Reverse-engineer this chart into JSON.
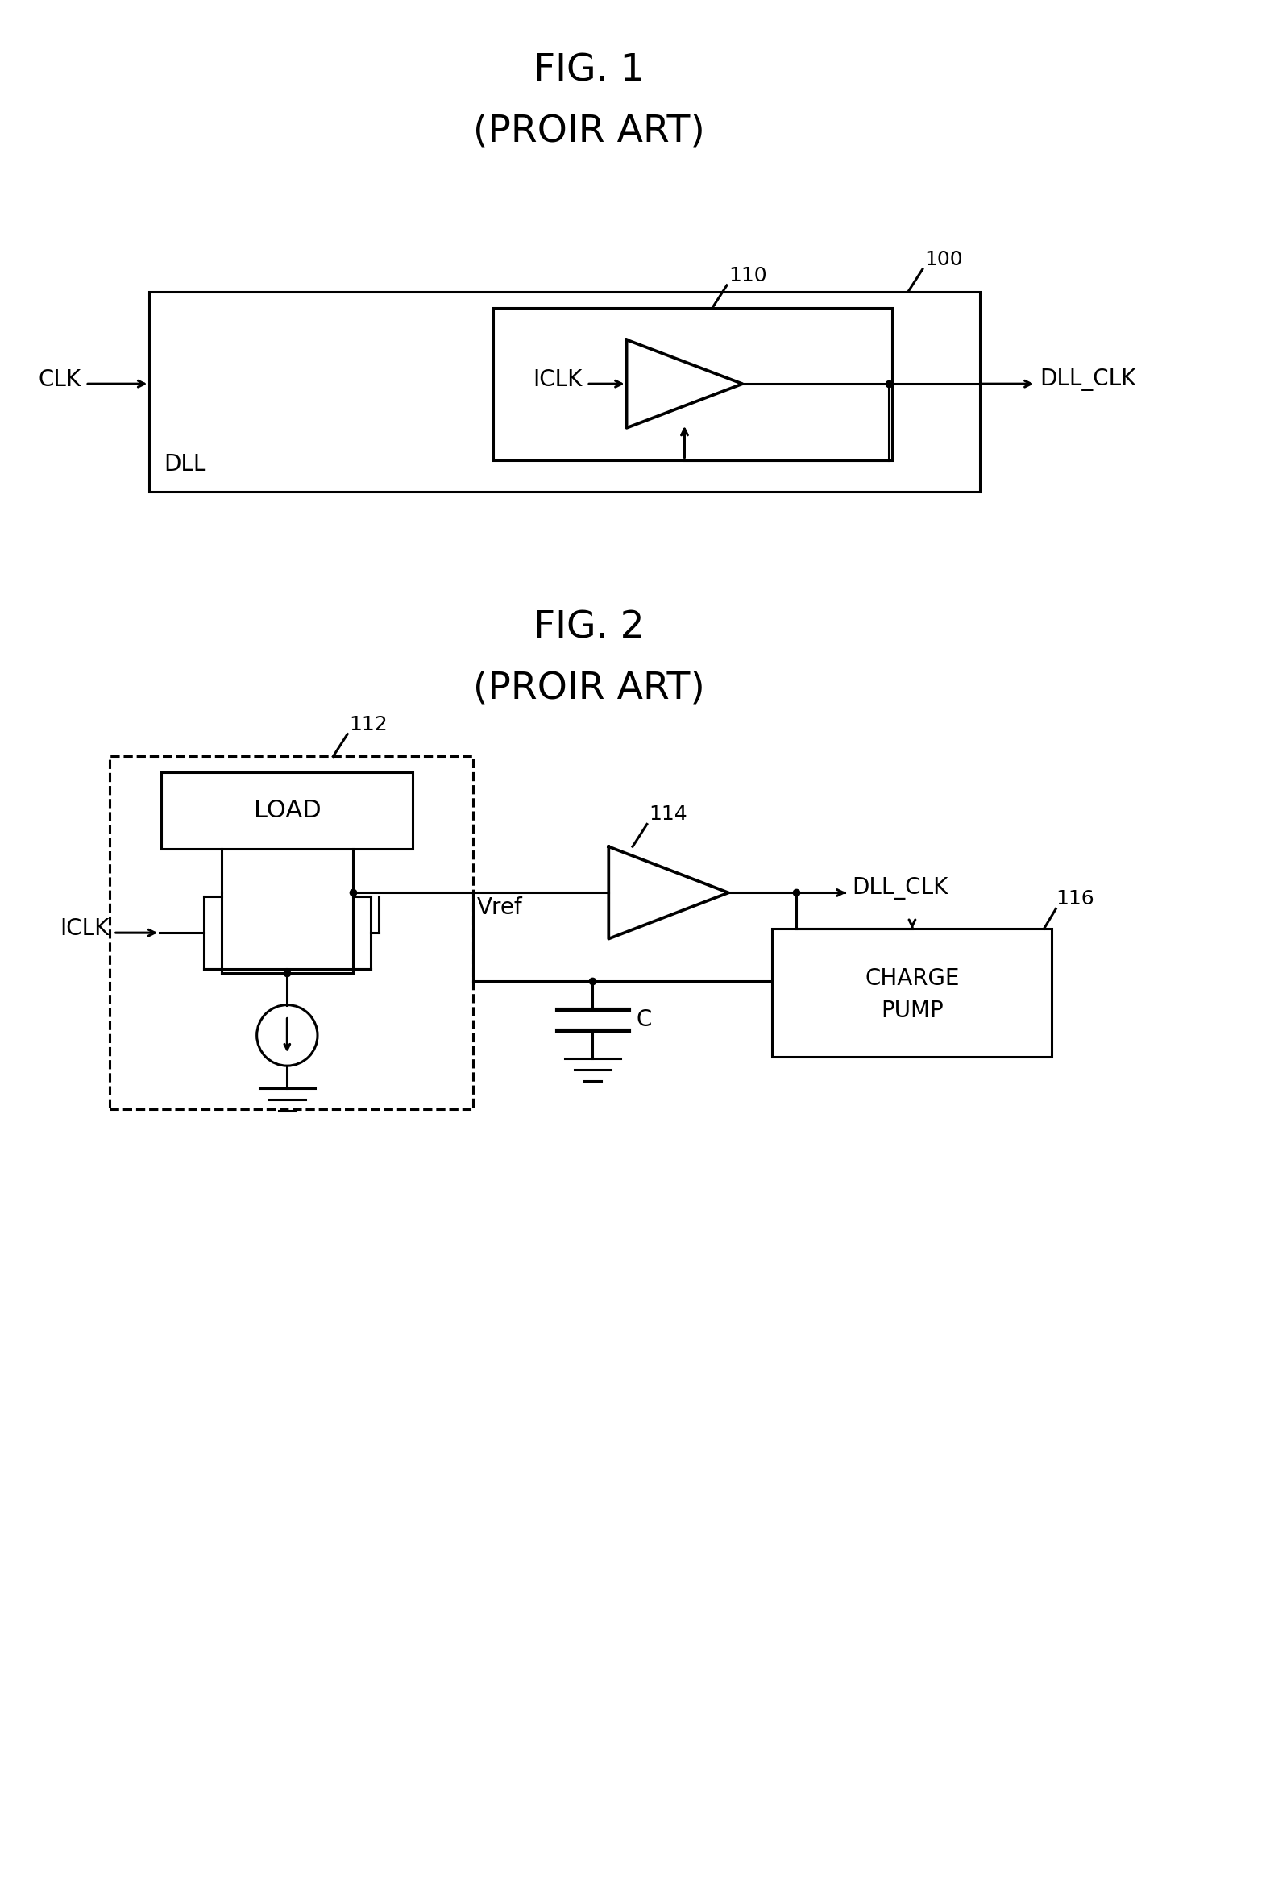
{
  "fig1_title": "FIG. 1",
  "fig1_subtitle": "(PROIR ART)",
  "fig2_title": "FIG. 2",
  "fig2_subtitle": "(PROIR ART)",
  "bg_color": "#ffffff",
  "line_color": "#000000",
  "text_color": "#000000",
  "lw": 2.2,
  "title_fontsize": 34,
  "label_fontsize": 20,
  "ref_fontsize": 18
}
